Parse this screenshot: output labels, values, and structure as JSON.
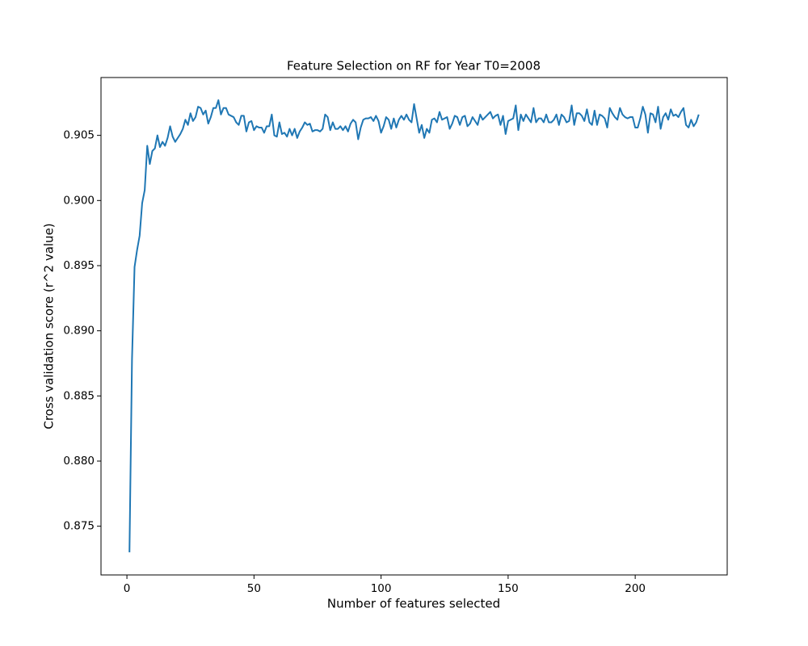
{
  "chart_data": {
    "type": "line",
    "title": "Feature Selection on RF for Year T0=2008",
    "x_label": "Number of features selected",
    "y_label": "Cross validation score (r^2 value)",
    "x": [
      1,
      2,
      3,
      4,
      5,
      6,
      7,
      8,
      9,
      10,
      11,
      12,
      13,
      14,
      15,
      16,
      17,
      18,
      19,
      20,
      21,
      22,
      23,
      24,
      25,
      26,
      27,
      28,
      29,
      30,
      31,
      32,
      33,
      34,
      35,
      36,
      37,
      38,
      39,
      40,
      41,
      42,
      43,
      44,
      45,
      46,
      47,
      48,
      49,
      50,
      51,
      52,
      53,
      54,
      55,
      56,
      57,
      58,
      59,
      60,
      61,
      62,
      63,
      64,
      65,
      66,
      67,
      68,
      69,
      70,
      71,
      72,
      73,
      74,
      75,
      76,
      77,
      78,
      79,
      80,
      81,
      82,
      83,
      84,
      85,
      86,
      87,
      88,
      89,
      90,
      91,
      92,
      93,
      94,
      95,
      96,
      97,
      98,
      99,
      100,
      101,
      102,
      103,
      104,
      105,
      106,
      107,
      108,
      109,
      110,
      111,
      112,
      113,
      114,
      115,
      116,
      117,
      118,
      119,
      120,
      121,
      122,
      123,
      124,
      125,
      126,
      127,
      128,
      129,
      130,
      131,
      132,
      133,
      134,
      135,
      136,
      137,
      138,
      139,
      140,
      141,
      142,
      143,
      144,
      145,
      146,
      147,
      148,
      149,
      150,
      151,
      152,
      153,
      154,
      155,
      156,
      157,
      158,
      159,
      160,
      161,
      162,
      163,
      164,
      165,
      166,
      167,
      168,
      169,
      170,
      171,
      172,
      173,
      174,
      175,
      176,
      177,
      178,
      179,
      180,
      181,
      182,
      183,
      184,
      185,
      186,
      187,
      188,
      189,
      190,
      191,
      192,
      193,
      194,
      195,
      196,
      197,
      198,
      199,
      200,
      201,
      202,
      203,
      204,
      205,
      206,
      207,
      208,
      209,
      210,
      211,
      212,
      213,
      214,
      215,
      216,
      217,
      218,
      219,
      220,
      221,
      222,
      223,
      224,
      225
    ],
    "series": [
      {
        "color": "#1f77b4",
        "values": [
          0.873,
          0.8878,
          0.8949,
          0.8962,
          0.8973,
          0.8998,
          0.9008,
          0.9042,
          0.9028,
          0.9038,
          0.904,
          0.905,
          0.9041,
          0.9045,
          0.9042,
          0.9048,
          0.9057,
          0.9049,
          0.9045,
          0.9048,
          0.9051,
          0.9055,
          0.9062,
          0.9058,
          0.9067,
          0.9061,
          0.9064,
          0.9072,
          0.9071,
          0.9066,
          0.9069,
          0.9059,
          0.9064,
          0.9071,
          0.9071,
          0.9077,
          0.9066,
          0.9071,
          0.9071,
          0.9066,
          0.9065,
          0.9064,
          0.906,
          0.9058,
          0.9065,
          0.9065,
          0.9053,
          0.906,
          0.9061,
          0.9054,
          0.9057,
          0.9056,
          0.9056,
          0.9052,
          0.9057,
          0.9057,
          0.9066,
          0.905,
          0.9049,
          0.906,
          0.9051,
          0.9052,
          0.9049,
          0.9055,
          0.905,
          0.9055,
          0.9048,
          0.9053,
          0.9056,
          0.906,
          0.9058,
          0.9059,
          0.9053,
          0.9054,
          0.9054,
          0.9053,
          0.9055,
          0.9066,
          0.9064,
          0.9054,
          0.906,
          0.9055,
          0.9055,
          0.9057,
          0.9054,
          0.9057,
          0.9053,
          0.9059,
          0.9062,
          0.906,
          0.9047,
          0.9056,
          0.9062,
          0.9063,
          0.9063,
          0.9064,
          0.9061,
          0.9065,
          0.9061,
          0.9052,
          0.9057,
          0.9064,
          0.9062,
          0.9055,
          0.9063,
          0.9056,
          0.9062,
          0.9065,
          0.9062,
          0.9066,
          0.9062,
          0.906,
          0.9074,
          0.9063,
          0.9052,
          0.9058,
          0.9048,
          0.9055,
          0.9052,
          0.9062,
          0.9063,
          0.906,
          0.9068,
          0.9062,
          0.9063,
          0.9064,
          0.9055,
          0.9059,
          0.9065,
          0.9064,
          0.9058,
          0.9064,
          0.9065,
          0.9057,
          0.9059,
          0.9064,
          0.9061,
          0.9058,
          0.9066,
          0.9062,
          0.9064,
          0.9066,
          0.9068,
          0.9063,
          0.9065,
          0.9066,
          0.9058,
          0.9065,
          0.9051,
          0.9061,
          0.9062,
          0.9063,
          0.9073,
          0.9054,
          0.9066,
          0.9061,
          0.9066,
          0.9063,
          0.906,
          0.9071,
          0.906,
          0.9063,
          0.9063,
          0.906,
          0.9066,
          0.906,
          0.906,
          0.9062,
          0.9066,
          0.9058,
          0.9066,
          0.9064,
          0.906,
          0.9061,
          0.9073,
          0.9058,
          0.9067,
          0.9067,
          0.9065,
          0.9061,
          0.907,
          0.906,
          0.9058,
          0.9069,
          0.9058,
          0.9066,
          0.9065,
          0.9063,
          0.9056,
          0.9071,
          0.9067,
          0.9064,
          0.9062,
          0.9071,
          0.9066,
          0.9064,
          0.9063,
          0.9064,
          0.9064,
          0.9056,
          0.9056,
          0.9063,
          0.9072,
          0.9066,
          0.9052,
          0.9067,
          0.9066,
          0.906,
          0.9072,
          0.9055,
          0.9064,
          0.9067,
          0.9062,
          0.907,
          0.9065,
          0.9066,
          0.9064,
          0.9068,
          0.9071,
          0.9058,
          0.9056,
          0.9062,
          0.9057,
          0.906,
          0.9066
        ]
      }
    ],
    "xlim": [
      -10.2,
      236.2
    ],
    "ylim": [
      0.87126,
      0.90944
    ],
    "xticks": [
      0,
      50,
      100,
      150,
      200
    ],
    "yticks": [
      0.875,
      {
        "value": 0.88,
        "label": "0.880"
      },
      0.885,
      {
        "value": 0.89,
        "label": "0.890"
      },
      0.895,
      {
        "value": 0.9,
        "label": "0.900"
      },
      0.905
    ]
  }
}
